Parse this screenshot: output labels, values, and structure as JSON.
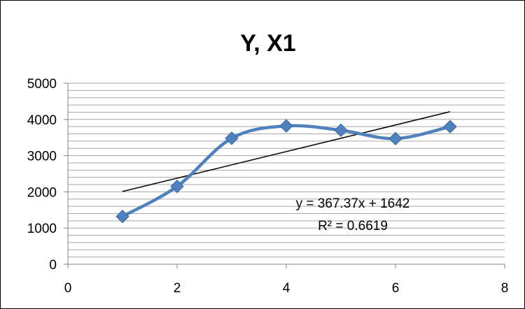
{
  "chart_data": {
    "type": "scatter",
    "title": "Y, X1",
    "xlabel": "",
    "ylabel": "",
    "xlim": [
      0,
      8
    ],
    "ylim": [
      0,
      5000
    ],
    "x_ticks": [
      "0",
      "2",
      "4",
      "6",
      "8"
    ],
    "y_ticks": [
      "0",
      "1000",
      "2000",
      "3000",
      "4000",
      "5000"
    ],
    "y_minor_step": 200,
    "grid": true,
    "legend": "none",
    "series": [
      {
        "x": [
          1,
          2,
          3,
          4,
          5,
          6,
          7
        ],
        "y": [
          1320,
          2150,
          3480,
          3820,
          3700,
          3470,
          3800
        ],
        "style": "smooth-line-with-diamond-markers",
        "color": "#4F81BD"
      }
    ],
    "trendline": {
      "type": "linear",
      "slope": 367.37,
      "intercept": 1642,
      "x_range": [
        1,
        7
      ],
      "color": "#000000",
      "equation_label": "y = 367.37x + 1642",
      "r2_label": "R² = 0.6619"
    }
  }
}
